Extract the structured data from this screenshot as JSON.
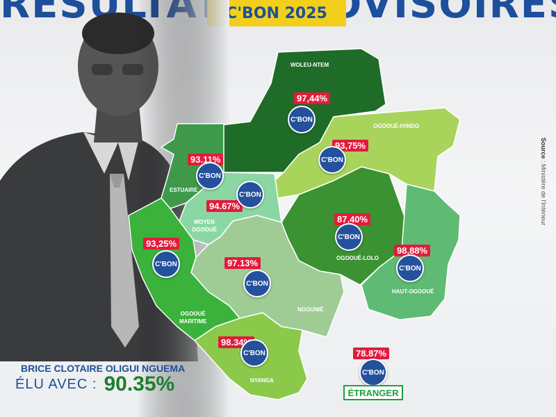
{
  "header": {
    "title_partial": "RÉSULTATS PROVISOIRES",
    "subtitle_badge": "C'BON 2025"
  },
  "source": {
    "label": "Source",
    "text": " : Ministère de l'Intérieur"
  },
  "logo_text": "C'BON",
  "regions": [
    {
      "id": "woleu-ntem",
      "name": "WOLEU-NTEM",
      "pct": "97,44%",
      "color": "#1f6b28"
    },
    {
      "id": "ogooue-ivindo",
      "name": "OGOOUÉ-IVINDO",
      "pct": "93,75%",
      "color": "#a9d45c"
    },
    {
      "id": "estuaire",
      "name": "ESTUAIRE",
      "pct": "93.11%",
      "color": "#3e9a4a"
    },
    {
      "id": "moyen-ogooue",
      "name": "MOYEN\nOGOOUÉ",
      "pct": "94.67%",
      "color": "#8bd7a4"
    },
    {
      "id": "ogooue-lolo",
      "name": "OGOOUÉ-LOLO",
      "pct": "87,40%",
      "color": "#3b9232"
    },
    {
      "id": "haut-ogooue",
      "name": "HAUT-OGOOUÉ",
      "pct": "98,88%",
      "color": "#5fba74"
    },
    {
      "id": "ogooue-maritime",
      "name": "OGOOUÉ\nMARITIME",
      "pct": "93,25%",
      "color": "#3ab23c"
    },
    {
      "id": "ngounie",
      "name": "NGOUNIÉ",
      "pct": "97.13%",
      "color": "#9fcc95"
    },
    {
      "id": "nyanga",
      "name": "NYANGA",
      "pct": "98.34%",
      "color": "#8bc94a"
    }
  ],
  "etranger": {
    "pct": "78.87%",
    "label": "ÉTRANGER"
  },
  "candidate": {
    "name": "BRICE CLOTAIRE OLIGUI NGUEMA",
    "elu_label": "ÉLU AVEC :",
    "elu_value": "90.35%"
  },
  "colors": {
    "accent_blue": "#1c4f9c",
    "accent_red": "#e31b3c",
    "accent_green": "#1e7e2c",
    "badge_yellow": "#f2cf1b"
  }
}
